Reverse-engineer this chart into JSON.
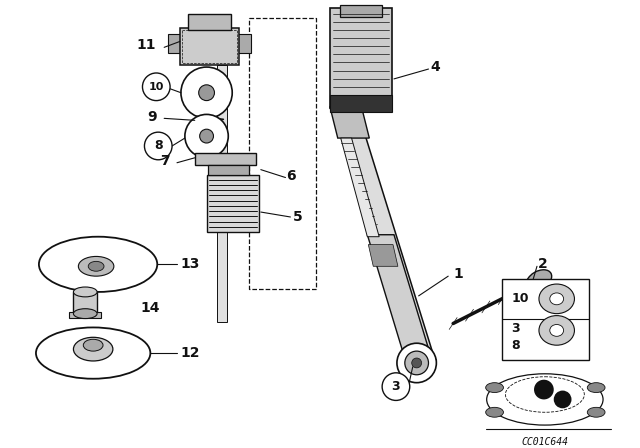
{
  "bg_color": "#ffffff",
  "line_color": "#111111",
  "fig_width": 6.4,
  "fig_height": 4.48,
  "dpi": 100,
  "watermark": "CC01C644"
}
